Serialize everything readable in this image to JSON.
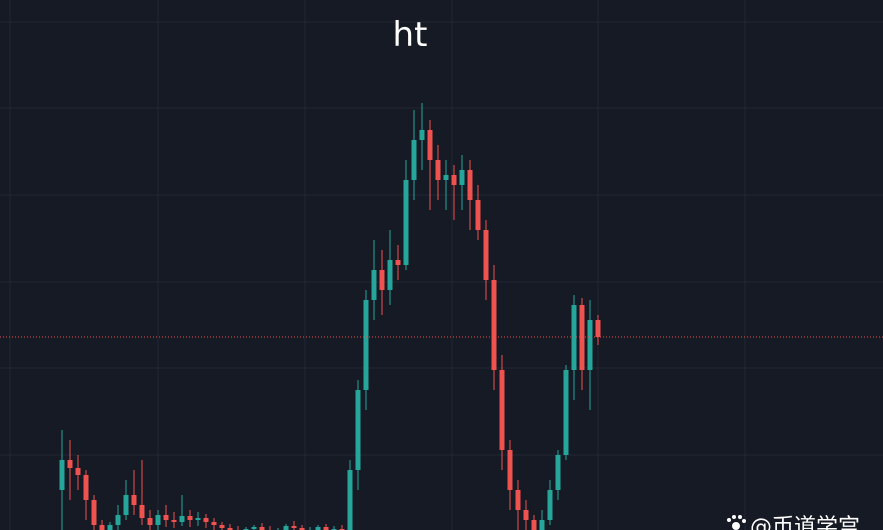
{
  "chart_data": {
    "type": "candlestick",
    "title": "ht",
    "watermark": "@币道学宫",
    "ylim": [
      0,
      530
    ],
    "up_color": "#26a69a",
    "down_color": "#ef5350",
    "last_price": 193,
    "last_price_color": "#ef5350",
    "open": [
      40,
      70,
      62,
      55,
      30,
      5,
      -5,
      5,
      15,
      35,
      25,
      12,
      5,
      15,
      10,
      8,
      14,
      10,
      12,
      8,
      5,
      2,
      0,
      -2,
      1,
      3,
      0,
      -3,
      -1,
      4,
      2,
      -2,
      0,
      3,
      -1,
      1,
      -3,
      60,
      140,
      230,
      260,
      240,
      270,
      265,
      350,
      390,
      400,
      370,
      350,
      355,
      345,
      360,
      330,
      300,
      250,
      160,
      80,
      40,
      20,
      10,
      0,
      10,
      40,
      75,
      160,
      225,
      160,
      210
    ],
    "high": [
      100,
      90,
      75,
      60,
      35,
      10,
      8,
      25,
      50,
      60,
      70,
      20,
      20,
      25,
      18,
      35,
      20,
      18,
      16,
      12,
      8,
      6,
      4,
      3,
      5,
      7,
      4,
      2,
      6,
      9,
      5,
      3,
      5,
      6,
      4,
      5,
      70,
      150,
      240,
      290,
      280,
      300,
      285,
      370,
      420,
      427,
      410,
      385,
      370,
      365,
      375,
      370,
      345,
      310,
      265,
      175,
      90,
      50,
      30,
      15,
      20,
      50,
      80,
      165,
      235,
      232,
      230,
      215
    ],
    "low": [
      0,
      30,
      40,
      10,
      -10,
      -20,
      -15,
      0,
      10,
      15,
      5,
      0,
      0,
      3,
      2,
      4,
      3,
      4,
      2,
      0,
      -5,
      -4,
      -6,
      -8,
      -5,
      -3,
      -6,
      -9,
      -5,
      0,
      -4,
      -8,
      -5,
      -2,
      -6,
      -4,
      -10,
      40,
      120,
      210,
      215,
      225,
      250,
      260,
      330,
      360,
      320,
      330,
      320,
      310,
      320,
      300,
      290,
      230,
      140,
      60,
      20,
      0,
      -5,
      -10,
      -10,
      5,
      30,
      70,
      130,
      140,
      120,
      185
    ],
    "close": [
      70,
      62,
      55,
      30,
      5,
      -5,
      5,
      15,
      35,
      25,
      12,
      5,
      15,
      10,
      8,
      14,
      10,
      12,
      8,
      5,
      2,
      0,
      -2,
      1,
      3,
      0,
      -3,
      -1,
      4,
      2,
      -2,
      0,
      3,
      -1,
      1,
      -3,
      60,
      140,
      230,
      260,
      240,
      270,
      265,
      350,
      390,
      400,
      370,
      350,
      355,
      345,
      360,
      330,
      300,
      250,
      160,
      80,
      40,
      20,
      10,
      0,
      10,
      40,
      75,
      160,
      225,
      160,
      210,
      193
    ]
  }
}
